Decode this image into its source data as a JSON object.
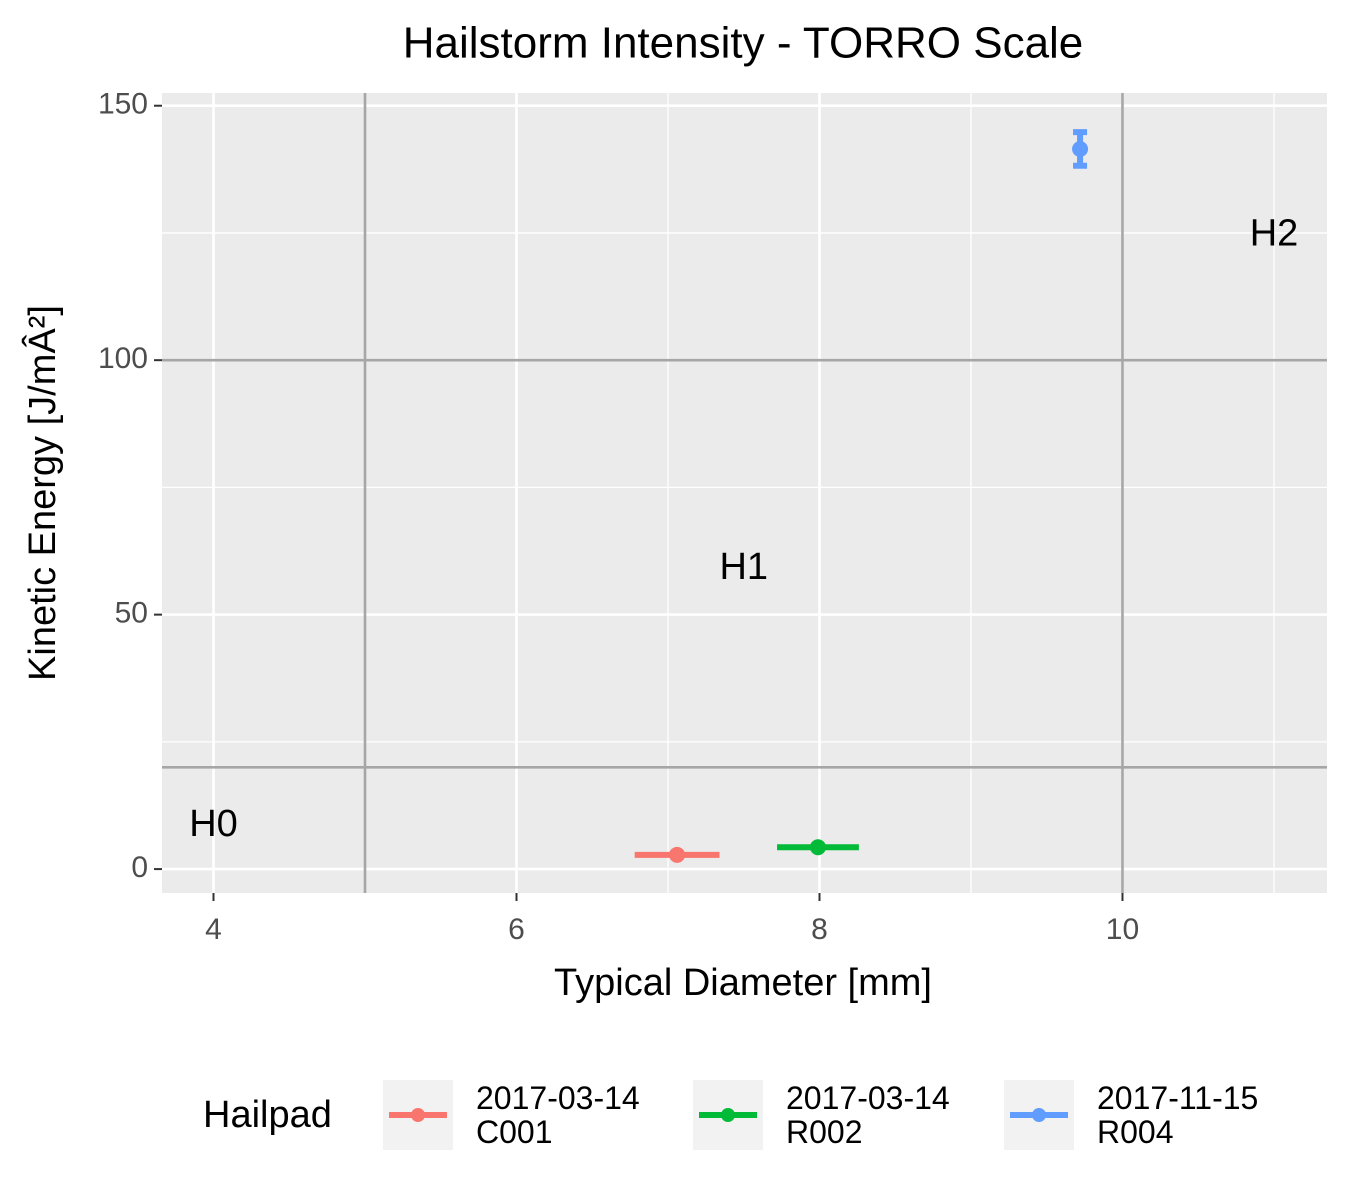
{
  "chart_data": {
    "type": "scatter",
    "title": "Hailstorm Intensity - TORRO Scale",
    "x_label": "Typical Diameter [mm]",
    "y_label": "Kinetic Energy [J/mÂ²]",
    "xlim": [
      3.66,
      11.35
    ],
    "ylim": [
      -4.7,
      152.5
    ],
    "xticks": [
      4,
      6,
      8,
      10
    ],
    "yticks": [
      0,
      50,
      100,
      150
    ],
    "minor_xticks": [
      5,
      7,
      9,
      11
    ],
    "minor_yticks": [
      25,
      75,
      125
    ],
    "grid": true,
    "reference_lines": {
      "x": [
        5,
        10
      ],
      "y": [
        20,
        100
      ]
    },
    "annotations": [
      {
        "text": "H0",
        "x": 4,
        "y": 8.5
      },
      {
        "text": "H1",
        "x": 7.5,
        "y": 59
      },
      {
        "text": "H2",
        "x": 11,
        "y": 124.5
      }
    ],
    "legend_title": "Hailpad",
    "legend_position": "bottom",
    "series": [
      {
        "name": "2017-03-14\nC001",
        "color": "#f8766d",
        "x": [
          7.06
        ],
        "values": [
          2.8
        ],
        "xerr": [
          0.28
        ]
      },
      {
        "name": "2017-03-14\nR002",
        "color": "#00ba38",
        "x": [
          7.99
        ],
        "values": [
          4.3
        ],
        "xerr": [
          0.27
        ]
      },
      {
        "name": "2017-11-15\nR004",
        "color": "#619cff",
        "x": [
          9.72
        ],
        "values": [
          141.5
        ],
        "yerr": [
          3.3
        ]
      }
    ]
  }
}
